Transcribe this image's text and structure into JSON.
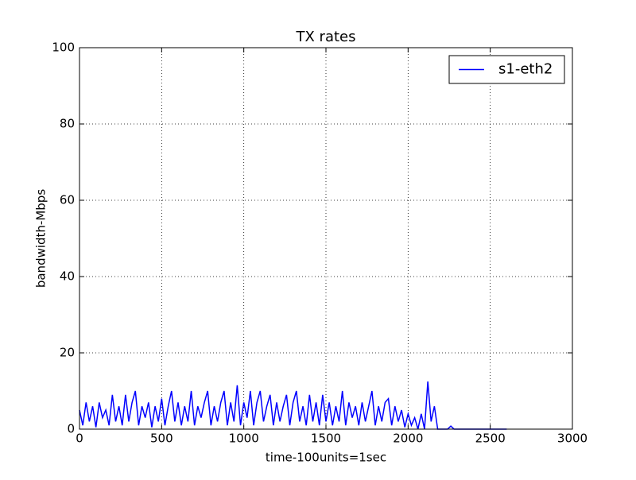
{
  "chart_data": {
    "type": "line",
    "title": "TX rates",
    "x_label": "time-100units=1sec",
    "y_label": "bandwidth-Mbps",
    "x": [
      0,
      20,
      40,
      60,
      80,
      100,
      120,
      140,
      160,
      180,
      200,
      220,
      240,
      260,
      280,
      300,
      320,
      340,
      360,
      380,
      400,
      420,
      440,
      460,
      480,
      500,
      520,
      540,
      560,
      580,
      600,
      620,
      640,
      660,
      680,
      700,
      720,
      740,
      760,
      780,
      800,
      820,
      840,
      860,
      880,
      900,
      920,
      940,
      960,
      980,
      1000,
      1020,
      1040,
      1060,
      1080,
      1100,
      1120,
      1140,
      1160,
      1180,
      1200,
      1220,
      1240,
      1260,
      1280,
      1300,
      1320,
      1340,
      1360,
      1380,
      1400,
      1420,
      1440,
      1460,
      1480,
      1500,
      1520,
      1540,
      1560,
      1580,
      1600,
      1620,
      1640,
      1660,
      1680,
      1700,
      1720,
      1740,
      1760,
      1780,
      1800,
      1820,
      1840,
      1860,
      1880,
      1900,
      1920,
      1940,
      1960,
      1980,
      2000,
      2020,
      2040,
      2060,
      2080,
      2100,
      2120,
      2140,
      2160,
      2180,
      2200,
      2220,
      2240,
      2260,
      2280,
      2300,
      2320,
      2340,
      2360,
      2380,
      2400,
      2420,
      2440,
      2460,
      2480,
      2500,
      2520,
      2540,
      2560,
      2580,
      2600
    ],
    "series": [
      {
        "name": "s1-eth2",
        "color": "#0000ff",
        "values": [
          5,
          1,
          7,
          2,
          6,
          0.5,
          7,
          3,
          5,
          1,
          9,
          2,
          6,
          1,
          9,
          2,
          7,
          10,
          1,
          6,
          3,
          7,
          0.5,
          6,
          2,
          8,
          1,
          6,
          10,
          2,
          7,
          1,
          6,
          2,
          10,
          1,
          6,
          3,
          7,
          10,
          1,
          6,
          2,
          7,
          10,
          1,
          7,
          2,
          11.5,
          1,
          7,
          3,
          10,
          1,
          7,
          10,
          2,
          6,
          9,
          1,
          7,
          2,
          6,
          9,
          1,
          7,
          10,
          2,
          6,
          1,
          9,
          2,
          7,
          1,
          9,
          2,
          7,
          1,
          6,
          2,
          10,
          1,
          7,
          3,
          6,
          1,
          7,
          2,
          6,
          10,
          1,
          6,
          2,
          7,
          8,
          1,
          6,
          2,
          5,
          0.5,
          4,
          1,
          3,
          0,
          4,
          0,
          12.5,
          2,
          6,
          0,
          0,
          0,
          0,
          0.8,
          0,
          0,
          0,
          0,
          0,
          0,
          0,
          0,
          0,
          0,
          0,
          0,
          0,
          0,
          0,
          0,
          0
        ]
      }
    ],
    "xlim": [
      0,
      3000
    ],
    "xticks": [
      0,
      500,
      1000,
      1500,
      2000,
      2500,
      3000
    ],
    "ylim": [
      0,
      100
    ],
    "yticks": [
      0,
      20,
      40,
      60,
      80,
      100
    ],
    "grid": true,
    "legend": "upper right"
  }
}
